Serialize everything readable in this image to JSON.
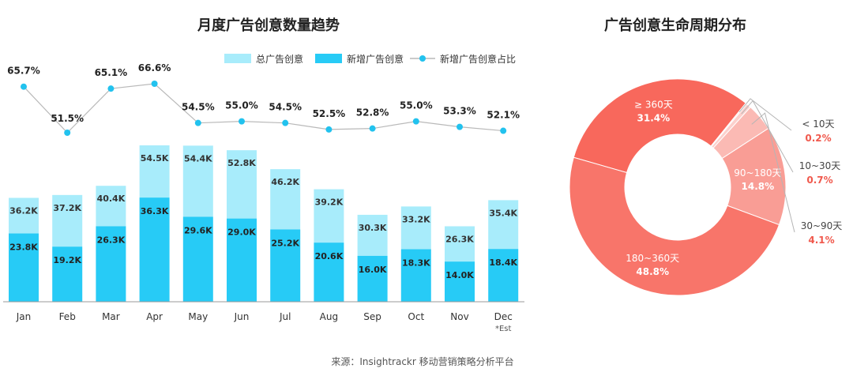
{
  "left_chart": {
    "title": "月度广告创意数量趋势",
    "legend": {
      "total": "总广告创意",
      "new": "新增广告创意",
      "ratio": "新增广告创意占比"
    },
    "colors": {
      "total": "#a8ecfb",
      "new": "#27cbf6",
      "ratio_line": "#b9b9b9",
      "ratio_point": "#22c2ee"
    }
  },
  "right_chart": {
    "title": "广告创意生命周期分布"
  },
  "source": "来源：Insightrackr 移动营销策略分析平台",
  "chart_data": [
    {
      "type": "bar",
      "title": "月度广告创意数量趋势",
      "categories": [
        "Jan",
        "Feb",
        "Mar",
        "Apr",
        "May",
        "Jun",
        "Jul",
        "Aug",
        "Sep",
        "Oct",
        "Nov",
        "Dec"
      ],
      "category_note": {
        "index": 11,
        "text": "*Est"
      },
      "stacked": true,
      "series": [
        {
          "name": "新增广告创意",
          "values": [
            23.8,
            19.2,
            26.3,
            36.3,
            29.6,
            29.0,
            25.2,
            20.6,
            16.0,
            18.3,
            14.0,
            18.4
          ],
          "labels": [
            "23.8K",
            "19.2K",
            "26.3K",
            "36.3K",
            "29.6K",
            "29.0K",
            "25.2K",
            "20.6K",
            "16.0K",
            "18.3K",
            "14.0K",
            "18.4K"
          ]
        },
        {
          "name": "总广告创意",
          "values": [
            36.2,
            37.2,
            40.4,
            54.5,
            54.4,
            52.8,
            46.2,
            39.2,
            30.3,
            33.2,
            26.3,
            35.4
          ],
          "labels": [
            "36.2K",
            "37.2K",
            "40.4K",
            "54.5K",
            "54.4K",
            "52.8K",
            "46.2K",
            "39.2K",
            "30.3K",
            "33.2K",
            "26.3K",
            "35.4K"
          ]
        }
      ],
      "line_series": {
        "name": "新增广告创意占比",
        "values": [
          65.7,
          51.5,
          65.1,
          66.6,
          54.5,
          55.0,
          54.5,
          52.5,
          52.8,
          55.0,
          53.3,
          52.1
        ],
        "labels": [
          "65.7%",
          "51.5%",
          "65.1%",
          "66.6%",
          "54.5%",
          "55.0%",
          "54.5%",
          "52.5%",
          "52.8%",
          "55.0%",
          "53.3%",
          "52.1%"
        ]
      },
      "legend_position": "top-right",
      "grid": false
    },
    {
      "type": "pie",
      "title": "广告创意生命周期分布",
      "donut": true,
      "slices": [
        {
          "label": "≥ 360天",
          "value": 31.4,
          "value_label": "31.4%",
          "color": "#f8685c"
        },
        {
          "label": "< 10天",
          "value": 0.2,
          "value_label": "0.2%",
          "color": "#fde3e1"
        },
        {
          "label": "10~30天",
          "value": 0.7,
          "value_label": "0.7%",
          "color": "#fcd0cc"
        },
        {
          "label": "30~90天",
          "value": 4.1,
          "value_label": "4.1%",
          "color": "#fbbab4"
        },
        {
          "label": "90~180天",
          "value": 14.8,
          "value_label": "14.8%",
          "color": "#f99d95"
        },
        {
          "label": "180~360天",
          "value": 48.8,
          "value_label": "48.8%",
          "color": "#f8756a"
        }
      ]
    }
  ]
}
